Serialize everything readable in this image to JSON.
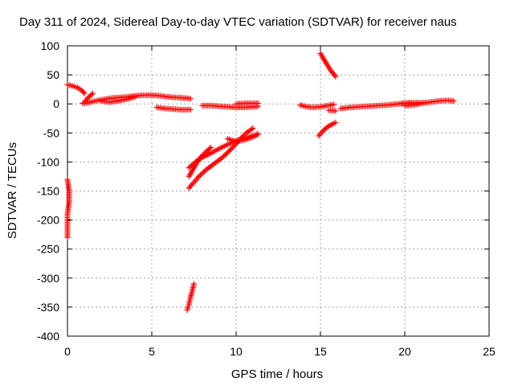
{
  "colors": {
    "series": "#ff0000",
    "grid": "#a0a0a0",
    "axis": "#000000"
  },
  "chart_data": {
    "type": "scatter",
    "title": "Day 311 of 2024, Sidereal Day-to-day VTEC variation (SDTVAR) for receiver naus",
    "xlabel": "GPS time / hours",
    "ylabel": "SDTVAR / TECUs",
    "xlim": [
      0,
      25
    ],
    "ylim": [
      -400,
      100
    ],
    "xticks": [
      0,
      5,
      10,
      15,
      20,
      25
    ],
    "yticks": [
      100,
      50,
      0,
      -50,
      -100,
      -150,
      -200,
      -250,
      -300,
      -350,
      -400
    ],
    "grid": true,
    "marker": "plus",
    "series": [
      {
        "name": "SDTVAR",
        "segments": [
          [
            [
              0.0,
              33
            ],
            [
              0.3,
              31
            ],
            [
              0.6,
              28
            ],
            [
              0.9,
              22
            ],
            [
              1.0,
              18
            ]
          ],
          [
            [
              0.9,
              1
            ],
            [
              1.2,
              2
            ],
            [
              1.5,
              4
            ],
            [
              1.8,
              6
            ],
            [
              2.2,
              8
            ],
            [
              2.6,
              10
            ],
            [
              3.0,
              11
            ],
            [
              3.5,
              12
            ],
            [
              4.0,
              14
            ],
            [
              4.5,
              15
            ],
            [
              5.0,
              15
            ],
            [
              5.5,
              14
            ],
            [
              6.0,
              12
            ],
            [
              6.5,
              11
            ],
            [
              7.0,
              10
            ],
            [
              7.3,
              9
            ]
          ],
          [
            [
              1.0,
              2
            ],
            [
              1.2,
              10
            ],
            [
              1.5,
              18
            ]
          ],
          [
            [
              2.0,
              5
            ],
            [
              2.5,
              3
            ],
            [
              3.0,
              5
            ],
            [
              3.5,
              8
            ],
            [
              4.0,
              12
            ]
          ],
          [
            [
              5.3,
              -6
            ],
            [
              5.8,
              -8
            ],
            [
              6.3,
              -9
            ],
            [
              6.8,
              -10
            ],
            [
              7.3,
              -10
            ]
          ],
          [
            [
              8.0,
              -3
            ],
            [
              8.5,
              -3
            ],
            [
              9.0,
              -4
            ],
            [
              9.5,
              -5
            ],
            [
              10.0,
              -6
            ],
            [
              10.5,
              -6
            ],
            [
              11.0,
              -5
            ],
            [
              11.3,
              -4
            ]
          ],
          [
            [
              10.0,
              0
            ],
            [
              10.5,
              1
            ],
            [
              11.0,
              1
            ],
            [
              11.3,
              1
            ]
          ],
          [
            [
              0.0,
              -130
            ],
            [
              0.1,
              -150
            ],
            [
              0.1,
              -170
            ],
            [
              0.0,
              -190
            ],
            [
              0.0,
              -210
            ],
            [
              0.0,
              -230
            ]
          ],
          [
            [
              7.2,
              -110
            ],
            [
              7.6,
              -100
            ],
            [
              8.0,
              -92
            ],
            [
              8.5,
              -85
            ],
            [
              9.0,
              -77
            ],
            [
              9.5,
              -70
            ],
            [
              10.0,
              -63
            ],
            [
              10.6,
              -58
            ],
            [
              11.3,
              -52
            ]
          ],
          [
            [
              7.2,
              -145
            ],
            [
              7.5,
              -135
            ],
            [
              7.8,
              -125
            ],
            [
              8.2,
              -114
            ],
            [
              8.7,
              -103
            ],
            [
              9.2,
              -92
            ],
            [
              9.7,
              -78
            ],
            [
              10.2,
              -62
            ],
            [
              10.6,
              -50
            ],
            [
              11.0,
              -42
            ]
          ],
          [
            [
              7.2,
              -125
            ],
            [
              7.5,
              -110
            ],
            [
              7.8,
              -95
            ],
            [
              8.2,
              -83
            ],
            [
              8.5,
              -75
            ]
          ],
          [
            [
              9.5,
              -60
            ],
            [
              10.0,
              -65
            ],
            [
              10.5,
              -62
            ],
            [
              11.0,
              -57
            ],
            [
              11.3,
              -52
            ]
          ],
          [
            [
              7.1,
              -355
            ],
            [
              7.2,
              -345
            ],
            [
              7.3,
              -333
            ],
            [
              7.4,
              -322
            ],
            [
              7.5,
              -310
            ]
          ],
          [
            [
              13.8,
              -2
            ],
            [
              14.2,
              -5
            ],
            [
              14.6,
              -6
            ],
            [
              15.0,
              -5
            ],
            [
              15.4,
              -3
            ],
            [
              15.8,
              -1
            ]
          ],
          [
            [
              15.0,
              87
            ],
            [
              15.3,
              72
            ],
            [
              15.6,
              58
            ],
            [
              15.9,
              47
            ]
          ],
          [
            [
              14.9,
              -55
            ],
            [
              15.2,
              -45
            ],
            [
              15.5,
              -38
            ],
            [
              15.9,
              -32
            ]
          ],
          [
            [
              15.5,
              -11
            ],
            [
              15.9,
              -12
            ]
          ],
          [
            [
              16.2,
              -8
            ],
            [
              16.8,
              -6
            ],
            [
              17.3,
              -5
            ],
            [
              17.8,
              -4
            ],
            [
              18.4,
              -3
            ],
            [
              19.0,
              -2
            ],
            [
              19.6,
              0
            ],
            [
              20.2,
              1
            ],
            [
              20.6,
              1
            ]
          ],
          [
            [
              20.0,
              -3
            ],
            [
              20.5,
              -2
            ],
            [
              21.0,
              1
            ],
            [
              21.5,
              3
            ],
            [
              22.0,
              5
            ],
            [
              22.5,
              6
            ],
            [
              22.9,
              5
            ]
          ],
          [
            [
              19.8,
              1
            ],
            [
              20.3,
              2
            ],
            [
              20.8,
              2
            ],
            [
              21.2,
              2
            ]
          ]
        ]
      }
    ]
  }
}
